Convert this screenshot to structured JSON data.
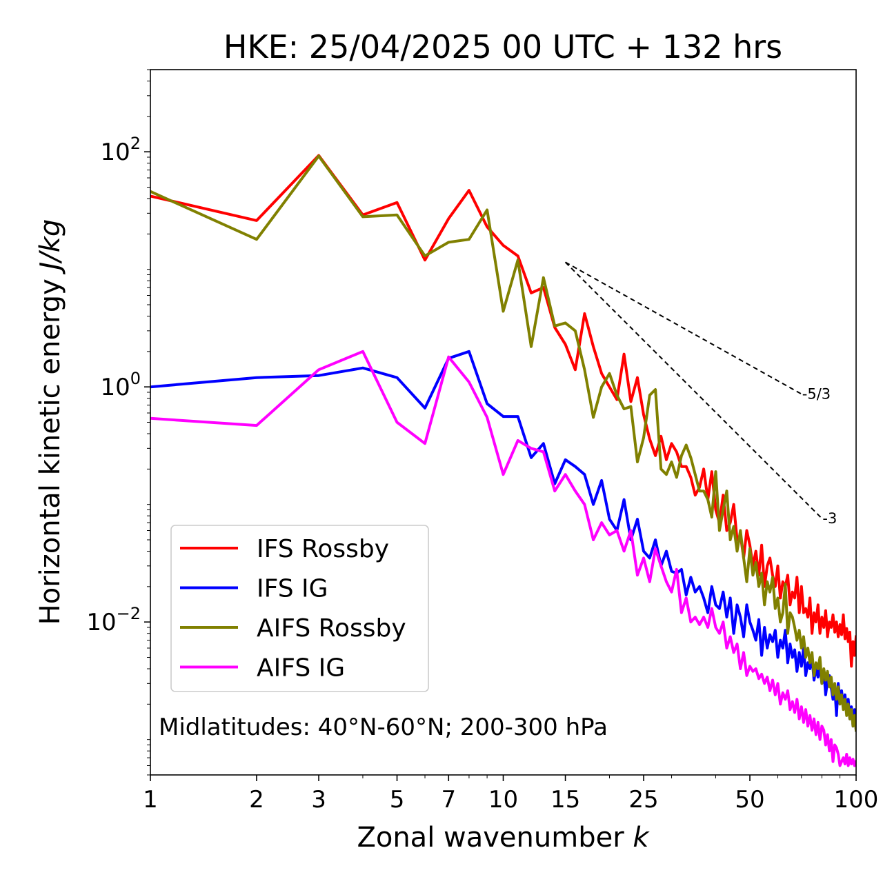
{
  "chart_data": {
    "type": "line",
    "title": "HKE: 25/04/2025 00 UTC + 132 hrs",
    "xlabel_text": "Zonal wavenumber ",
    "xlabel_italic": "k",
    "ylabel_text": "Horizontal kinetic energy ",
    "ylabel_italic": "J/kg",
    "xscale": "log",
    "yscale": "log",
    "xlim": [
      1,
      100
    ],
    "ylim": [
      0.0005,
      500
    ],
    "xticks": [
      1,
      2,
      3,
      5,
      7,
      10,
      15,
      25,
      50,
      100
    ],
    "xtick_labels": [
      "1",
      "2",
      "3",
      "5",
      "7",
      "10",
      "15",
      "25",
      "50",
      "100"
    ],
    "yticks": [
      {
        "value": 0.01,
        "base": "10",
        "exp": "−2"
      },
      {
        "value": 1,
        "base": "10",
        "exp": "0"
      },
      {
        "value": 100,
        "base": "10",
        "exp": "2"
      }
    ],
    "annotation": "Midlatitudes: 40°N-60°N; 200-300 hPa",
    "legend_position": "lower-left",
    "reference_lines": [
      {
        "label": "-5/3",
        "slope": -1.6667,
        "x": [
          15,
          70
        ],
        "y": [
          11.5,
          0.87
        ]
      },
      {
        "label": "-3",
        "slope": -3,
        "x": [
          15,
          80
        ],
        "y": [
          11.5,
          0.076
        ]
      }
    ],
    "series": [
      {
        "name": "IFS Rossby",
        "color": "#ff0000",
        "x": [
          1,
          2,
          3,
          4,
          5,
          6,
          7,
          8,
          9,
          10,
          11,
          12,
          13,
          14,
          15,
          16,
          17,
          18,
          19,
          20,
          21,
          22,
          23,
          24,
          25,
          26,
          27,
          28,
          29,
          30,
          31,
          32,
          33,
          34,
          35,
          36,
          37,
          38,
          39,
          40,
          41,
          42,
          43,
          44,
          45,
          46,
          47,
          48,
          49,
          50,
          51,
          52,
          53,
          54,
          55,
          56,
          57,
          58,
          59,
          60,
          61,
          62,
          63,
          64,
          65,
          66,
          67,
          68,
          69,
          70,
          71,
          72,
          73,
          74,
          75,
          76,
          77,
          78,
          79,
          80,
          81,
          82,
          83,
          84,
          85,
          86,
          87,
          88,
          89,
          90,
          91,
          92,
          93,
          94,
          95,
          96,
          97,
          98,
          99,
          100
        ],
        "y": [
          42,
          26,
          93,
          29,
          37,
          12,
          27,
          47,
          23,
          16,
          13,
          6.3,
          7.0,
          3.2,
          2.3,
          1.4,
          4.2,
          2.2,
          1.3,
          1.0,
          0.78,
          1.9,
          0.75,
          1.2,
          0.58,
          0.36,
          0.26,
          0.38,
          0.24,
          0.33,
          0.28,
          0.21,
          0.21,
          0.17,
          0.12,
          0.14,
          0.2,
          0.11,
          0.19,
          0.09,
          0.07,
          0.12,
          0.06,
          0.07,
          0.1,
          0.05,
          0.055,
          0.035,
          0.06,
          0.045,
          0.03,
          0.04,
          0.025,
          0.045,
          0.02,
          0.03,
          0.035,
          0.025,
          0.02,
          0.03,
          0.016,
          0.022,
          0.02,
          0.025,
          0.014,
          0.018,
          0.016,
          0.024,
          0.012,
          0.02,
          0.012,
          0.013,
          0.011,
          0.016,
          0.008,
          0.012,
          0.01,
          0.014,
          0.008,
          0.011,
          0.009,
          0.0125,
          0.0075,
          0.01,
          0.009,
          0.0115,
          0.0082,
          0.01,
          0.0075,
          0.0095,
          0.0078,
          0.0115,
          0.0072,
          0.0088,
          0.0068,
          0.0082,
          0.0042,
          0.0068,
          0.0052,
          0.0075
        ]
      },
      {
        "name": "IFS IG",
        "color": "#0000ff",
        "x": [
          1,
          2,
          3,
          4,
          5,
          6,
          7,
          8,
          9,
          10,
          11,
          12,
          13,
          14,
          15,
          16,
          17,
          18,
          19,
          20,
          21,
          22,
          23,
          24,
          25,
          26,
          27,
          28,
          29,
          30,
          31,
          32,
          33,
          34,
          35,
          36,
          37,
          38,
          39,
          40,
          41,
          42,
          43,
          44,
          45,
          46,
          47,
          48,
          49,
          50,
          51,
          52,
          53,
          54,
          55,
          56,
          57,
          58,
          59,
          60,
          61,
          62,
          63,
          64,
          65,
          66,
          67,
          68,
          69,
          70,
          71,
          72,
          73,
          74,
          75,
          76,
          77,
          78,
          79,
          80,
          81,
          82,
          83,
          84,
          85,
          86,
          87,
          88,
          89,
          90,
          91,
          92,
          93,
          94,
          95,
          96,
          97,
          98,
          99,
          100
        ],
        "y": [
          1.0,
          1.2,
          1.25,
          1.45,
          1.2,
          0.66,
          1.75,
          2.0,
          0.72,
          0.56,
          0.56,
          0.25,
          0.33,
          0.15,
          0.24,
          0.21,
          0.18,
          0.1,
          0.16,
          0.075,
          0.06,
          0.11,
          0.05,
          0.075,
          0.04,
          0.035,
          0.05,
          0.03,
          0.04,
          0.027,
          0.026,
          0.028,
          0.017,
          0.024,
          0.018,
          0.02,
          0.016,
          0.012,
          0.02,
          0.014,
          0.013,
          0.018,
          0.011,
          0.016,
          0.008,
          0.014,
          0.011,
          0.0075,
          0.014,
          0.01,
          0.0085,
          0.007,
          0.0105,
          0.0052,
          0.009,
          0.006,
          0.0078,
          0.0068,
          0.0085,
          0.005,
          0.007,
          0.006,
          0.0085,
          0.0045,
          0.0065,
          0.005,
          0.0058,
          0.0038,
          0.0055,
          0.0042,
          0.006,
          0.0035,
          0.0045,
          0.004,
          0.005,
          0.0032,
          0.004,
          0.0034,
          0.0042,
          0.003,
          0.0038,
          0.0024,
          0.0032,
          0.0035,
          0.0028,
          0.0022,
          0.0028,
          0.0016,
          0.003,
          0.0022,
          0.0026,
          0.0019,
          0.0024,
          0.0017,
          0.0022,
          0.0015,
          0.0019,
          0.0013,
          0.0018,
          0.0012
        ]
      },
      {
        "name": "AIFS Rossby",
        "color": "#808000",
        "x": [
          1,
          2,
          3,
          4,
          5,
          6,
          7,
          8,
          9,
          10,
          11,
          12,
          13,
          14,
          15,
          16,
          17,
          18,
          19,
          20,
          21,
          22,
          23,
          24,
          25,
          26,
          27,
          28,
          29,
          30,
          31,
          32,
          33,
          34,
          35,
          36,
          37,
          38,
          39,
          40,
          41,
          42,
          43,
          44,
          45,
          46,
          47,
          48,
          49,
          50,
          51,
          52,
          53,
          54,
          55,
          56,
          57,
          58,
          59,
          60,
          61,
          62,
          63,
          64,
          65,
          66,
          67,
          68,
          69,
          70,
          71,
          72,
          73,
          74,
          75,
          76,
          77,
          78,
          79,
          80,
          81,
          82,
          83,
          84,
          85,
          86,
          87,
          88,
          89,
          90,
          91,
          92,
          93,
          94,
          95,
          96,
          97,
          98,
          99,
          100
        ],
        "y": [
          46,
          18,
          92,
          28,
          29,
          13,
          17,
          18,
          32,
          4.4,
          12,
          2.2,
          8.5,
          3.3,
          3.5,
          3.0,
          1.4,
          0.55,
          1.0,
          1.3,
          0.85,
          0.65,
          0.68,
          0.23,
          0.37,
          0.85,
          0.95,
          0.2,
          0.18,
          0.23,
          0.17,
          0.26,
          0.32,
          0.25,
          0.18,
          0.13,
          0.13,
          0.11,
          0.078,
          0.19,
          0.06,
          0.09,
          0.13,
          0.05,
          0.065,
          0.04,
          0.06,
          0.035,
          0.022,
          0.042,
          0.025,
          0.032,
          0.02,
          0.026,
          0.014,
          0.022,
          0.018,
          0.024,
          0.013,
          0.016,
          0.01,
          0.012,
          0.021,
          0.008,
          0.012,
          0.011,
          0.009,
          0.007,
          0.0085,
          0.006,
          0.0075,
          0.005,
          0.006,
          0.0045,
          0.0055,
          0.0035,
          0.0045,
          0.004,
          0.005,
          0.003,
          0.004,
          0.0032,
          0.0038,
          0.0028,
          0.0034,
          0.0024,
          0.003,
          0.0022,
          0.0028,
          0.002,
          0.0024,
          0.0018,
          0.0022,
          0.0016,
          0.002,
          0.0015,
          0.0018,
          0.0013,
          0.0016,
          0.0012
        ]
      },
      {
        "name": "AIFS IG",
        "color": "#ff00ff",
        "x": [
          1,
          2,
          3,
          4,
          5,
          6,
          7,
          8,
          9,
          10,
          11,
          12,
          13,
          14,
          15,
          16,
          17,
          18,
          19,
          20,
          21,
          22,
          23,
          24,
          25,
          26,
          27,
          28,
          29,
          30,
          31,
          32,
          33,
          34,
          35,
          36,
          37,
          38,
          39,
          40,
          41,
          42,
          43,
          44,
          45,
          46,
          47,
          48,
          49,
          50,
          51,
          52,
          53,
          54,
          55,
          56,
          57,
          58,
          59,
          60,
          61,
          62,
          63,
          64,
          65,
          66,
          67,
          68,
          69,
          70,
          71,
          72,
          73,
          74,
          75,
          76,
          77,
          78,
          79,
          80,
          81,
          82,
          83,
          84,
          85,
          86,
          87,
          88,
          89,
          90,
          91,
          92,
          93,
          94,
          95,
          96,
          97,
          98,
          99,
          100
        ],
        "y": [
          0.54,
          0.47,
          1.4,
          2.0,
          0.5,
          0.33,
          1.8,
          1.1,
          0.55,
          0.18,
          0.35,
          0.3,
          0.28,
          0.13,
          0.18,
          0.13,
          0.1,
          0.05,
          0.07,
          0.055,
          0.06,
          0.04,
          0.06,
          0.025,
          0.035,
          0.022,
          0.042,
          0.03,
          0.022,
          0.018,
          0.028,
          0.012,
          0.016,
          0.01,
          0.011,
          0.0095,
          0.011,
          0.009,
          0.013,
          0.009,
          0.008,
          0.01,
          0.006,
          0.0075,
          0.0055,
          0.0065,
          0.004,
          0.0055,
          0.0035,
          0.0042,
          0.0038,
          0.004,
          0.0033,
          0.0036,
          0.003,
          0.0034,
          0.0026,
          0.0032,
          0.0024,
          0.003,
          0.002,
          0.0025,
          0.0022,
          0.0026,
          0.0018,
          0.0021,
          0.0017,
          0.0022,
          0.0015,
          0.0019,
          0.0014,
          0.0018,
          0.0013,
          0.0016,
          0.0012,
          0.0015,
          0.0011,
          0.0014,
          0.001,
          0.0013,
          0.0012,
          0.0009,
          0.0011,
          0.0008,
          0.001,
          0.00065,
          0.0009,
          0.00085,
          0.00075,
          0.0006,
          0.00065,
          0.0007,
          0.00062,
          0.00075,
          0.0006,
          0.0007,
          0.00062,
          0.00068,
          0.0006,
          0.00065
        ]
      }
    ]
  }
}
